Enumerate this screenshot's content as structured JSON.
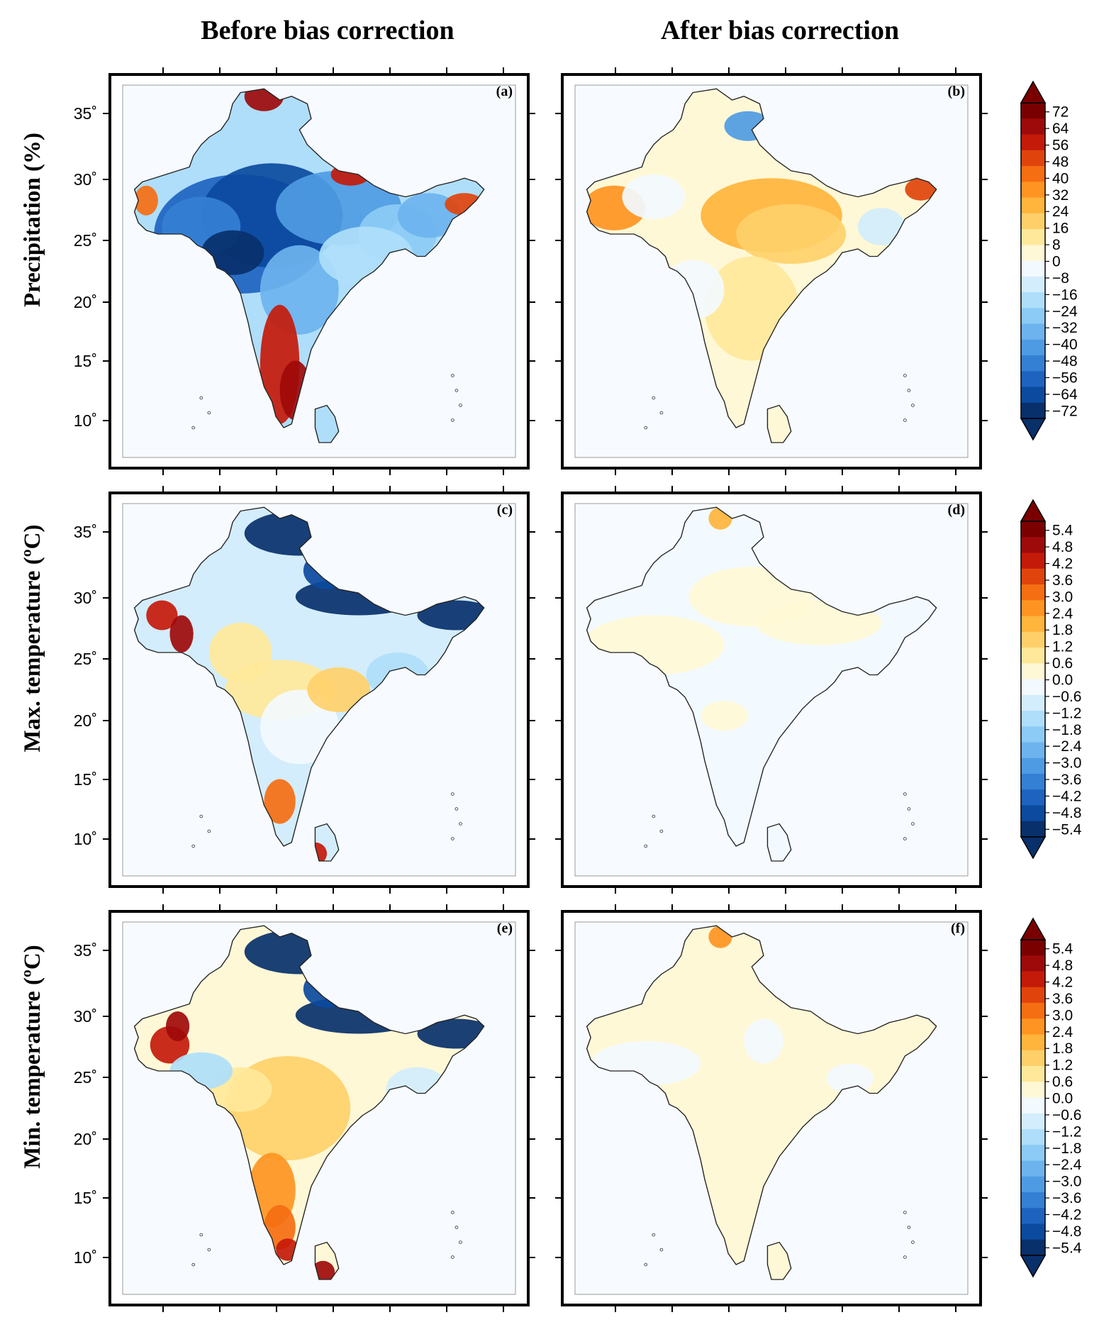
{
  "column_titles": [
    "Before bias correction",
    "After bias correction"
  ],
  "rows": [
    {
      "label": "Precipitation (%)",
      "panels": [
        {
          "id": "(a)",
          "tone": "precip-before"
        },
        {
          "id": "(b)",
          "tone": "precip-after"
        }
      ]
    },
    {
      "label": "Max. temperature (ºC)",
      "panels": [
        {
          "id": "(c)",
          "tone": "tmax-before"
        },
        {
          "id": "(d)",
          "tone": "tmax-after"
        }
      ]
    },
    {
      "label": "Min. temperature (ºC)",
      "panels": [
        {
          "id": "(e)",
          "tone": "tmin-before"
        },
        {
          "id": "(f)",
          "tone": "tmin-after"
        }
      ]
    }
  ],
  "lat_ticks": [
    "35˚",
    "30˚",
    "25˚",
    "20˚",
    "15˚",
    "10˚"
  ],
  "colorbars": [
    {
      "ticks": [
        "72",
        "64",
        "56",
        "48",
        "40",
        "32",
        "24",
        "16",
        "8",
        "0",
        "−8",
        "−16",
        "−24",
        "−32",
        "−40",
        "−48",
        "−56",
        "−64",
        "−72"
      ]
    },
    {
      "ticks": [
        "5.4",
        "4.8",
        "4.2",
        "3.6",
        "3.0",
        "2.4",
        "1.8",
        "1.2",
        "0.6",
        "0.0",
        "−0.6",
        "−1.2",
        "−1.8",
        "−2.4",
        "−3.0",
        "−3.6",
        "−4.2",
        "−4.8",
        "−5.4"
      ]
    },
    {
      "ticks": [
        "5.4",
        "4.8",
        "4.2",
        "3.6",
        "3.0",
        "2.4",
        "1.8",
        "1.2",
        "0.6",
        "0.0",
        "−0.6",
        "−1.2",
        "−1.8",
        "−2.4",
        "−3.0",
        "−3.6",
        "−4.2",
        "−4.8",
        "−5.4"
      ]
    }
  ],
  "colormap": [
    "#08306b",
    "#0b4a9e",
    "#1e63c0",
    "#3480d4",
    "#4f9be3",
    "#6db3ee",
    "#8ccbf5",
    "#afdefa",
    "#d3edfc",
    "#f3faff",
    "#fff8d6",
    "#ffe89a",
    "#ffd06a",
    "#ffb43c",
    "#ff9422",
    "#f56e12",
    "#e0440c",
    "#c41a0a",
    "#9e0a0a",
    "#7a0000"
  ]
}
